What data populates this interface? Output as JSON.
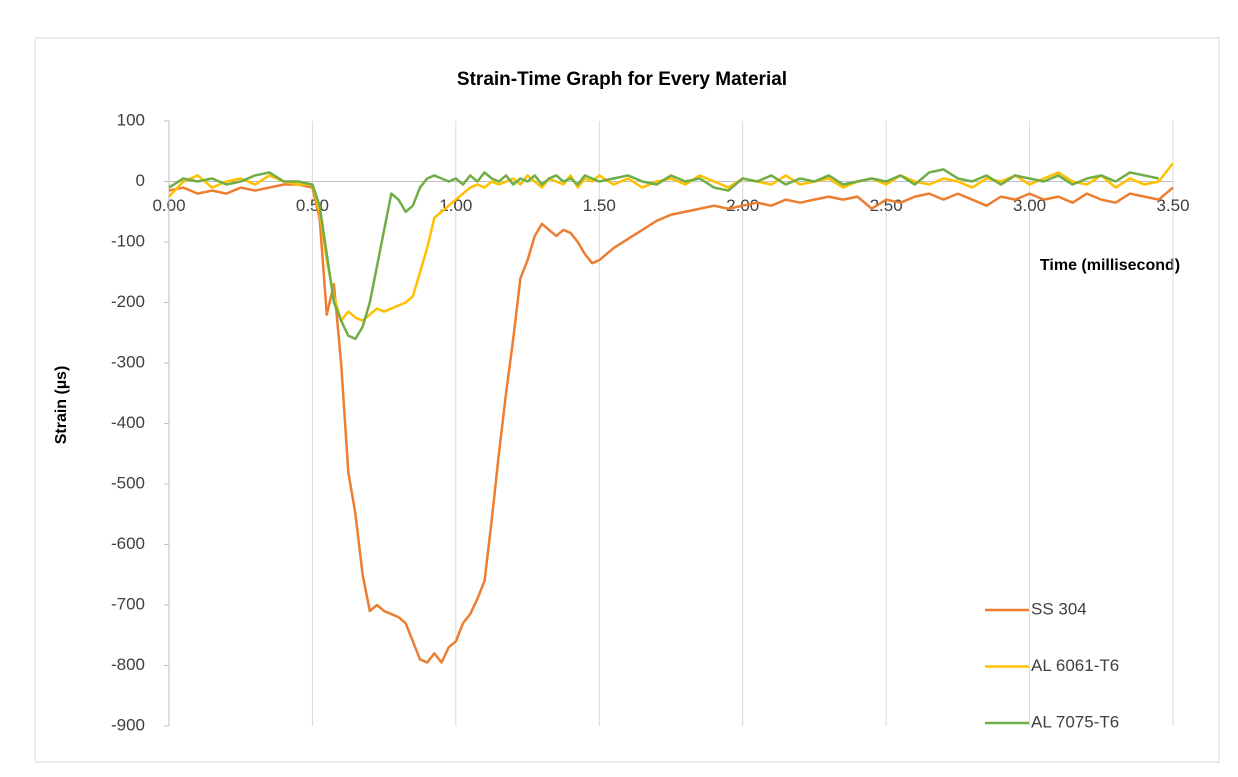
{
  "chart_data": {
    "type": "line",
    "title": "Strain-Time Graph for Every Material",
    "xlabel": "Time (millisecond)",
    "ylabel": "Strain (µs)",
    "x": [
      0,
      0.05,
      0.1,
      0.15,
      0.2,
      0.25,
      0.3,
      0.35,
      0.4,
      0.45,
      0.5,
      0.525,
      0.55,
      0.575,
      0.6,
      0.625,
      0.65,
      0.675,
      0.7,
      0.725,
      0.75,
      0.775,
      0.8,
      0.825,
      0.85,
      0.875,
      0.9,
      0.925,
      0.95,
      0.975,
      1.0,
      1.025,
      1.05,
      1.075,
      1.1,
      1.125,
      1.15,
      1.175,
      1.2,
      1.225,
      1.25,
      1.275,
      1.3,
      1.325,
      1.35,
      1.375,
      1.4,
      1.425,
      1.45,
      1.475,
      1.5,
      1.55,
      1.6,
      1.65,
      1.7,
      1.75,
      1.8,
      1.85,
      1.9,
      1.95,
      2.0,
      2.05,
      2.1,
      2.15,
      2.2,
      2.25,
      2.3,
      2.35,
      2.4,
      2.45,
      2.5,
      2.55,
      2.6,
      2.65,
      2.7,
      2.75,
      2.8,
      2.85,
      2.9,
      2.95,
      3.0,
      3.05,
      3.1,
      3.15,
      3.2,
      3.25,
      3.3,
      3.35,
      3.4,
      3.45,
      3.5
    ],
    "series": [
      {
        "name": "SS 304",
        "color": "#ED7D31",
        "values": [
          -15,
          -10,
          -20,
          -15,
          -20,
          -10,
          -15,
          -10,
          -5,
          -5,
          -10,
          -60,
          -220,
          -170,
          -300,
          -480,
          -550,
          -650,
          -710,
          -700,
          -710,
          -715,
          -720,
          -730,
          -760,
          -790,
          -795,
          -780,
          -795,
          -770,
          -760,
          -730,
          -715,
          -690,
          -660,
          -560,
          -450,
          -350,
          -260,
          -160,
          -130,
          -90,
          -70,
          -80,
          -90,
          -80,
          -85,
          -100,
          -120,
          -135,
          -130,
          -110,
          -95,
          -80,
          -65,
          -55,
          -50,
          -45,
          -40,
          -45,
          -40,
          -35,
          -40,
          -30,
          -35,
          -30,
          -25,
          -30,
          -25,
          -45,
          -30,
          -35,
          -25,
          -20,
          -30,
          -20,
          -30,
          -40,
          -25,
          -30,
          -20,
          -30,
          -25,
          -35,
          -20,
          -30,
          -35,
          -20,
          -25,
          -30,
          -10
        ]
      },
      {
        "name": "AL 6061-T6",
        "color": "#FFC000",
        "values": [
          -25,
          0,
          10,
          -10,
          0,
          5,
          -5,
          10,
          0,
          -5,
          -5,
          -50,
          -130,
          -190,
          -230,
          -215,
          -225,
          -230,
          -220,
          -210,
          -215,
          -210,
          -205,
          -200,
          -190,
          -150,
          -110,
          -60,
          -50,
          -40,
          -30,
          -20,
          -10,
          -5,
          -10,
          0,
          -5,
          0,
          5,
          -5,
          10,
          0,
          -10,
          5,
          0,
          -5,
          10,
          -10,
          5,
          0,
          10,
          -5,
          5,
          -10,
          0,
          5,
          -5,
          10,
          0,
          -10,
          5,
          0,
          -5,
          10,
          -5,
          0,
          5,
          -10,
          0,
          5,
          -5,
          10,
          0,
          -5,
          5,
          0,
          -10,
          5,
          0,
          10,
          -5,
          5,
          15,
          0,
          -5,
          10,
          -10,
          5,
          -5,
          0,
          30
        ]
      },
      {
        "name": "AL 7075-T6",
        "color": "#70AD47",
        "values": [
          -10,
          5,
          0,
          5,
          -5,
          0,
          10,
          15,
          0,
          0,
          -5,
          -40,
          -120,
          -200,
          -230,
          -255,
          -260,
          -240,
          -200,
          -140,
          -80,
          -20,
          -30,
          -50,
          -40,
          -10,
          5,
          10,
          5,
          0,
          5,
          -5,
          10,
          0,
          15,
          5,
          0,
          10,
          -5,
          5,
          0,
          10,
          -5,
          5,
          10,
          0,
          5,
          -5,
          10,
          5,
          0,
          5,
          10,
          0,
          -5,
          10,
          0,
          5,
          -10,
          -15,
          5,
          0,
          10,
          -5,
          5,
          0,
          10,
          -5,
          0,
          5,
          0,
          10,
          -5,
          15,
          20,
          5,
          0,
          10,
          -5,
          10,
          5,
          0,
          10,
          -5,
          5,
          10,
          0,
          15,
          10,
          5,
          null
        ]
      }
    ],
    "xlim": [
      0,
      3.5
    ],
    "ylim": [
      -900,
      100
    ],
    "xticks": [
      {
        "value": 0,
        "label": "0.00"
      },
      {
        "value": 0.5,
        "label": "0.50"
      },
      {
        "value": 1,
        "label": "1.00"
      },
      {
        "value": 1.5,
        "label": "1.50"
      },
      {
        "value": 2,
        "label": "2.00"
      },
      {
        "value": 2.5,
        "label": "2.50"
      },
      {
        "value": 3,
        "label": "3.00"
      },
      {
        "value": 3.5,
        "label": "3.50"
      }
    ],
    "yticks": [
      -900,
      -800,
      -700,
      -600,
      -500,
      -400,
      -300,
      -200,
      -100,
      0,
      100
    ],
    "grid": "x",
    "legend": "lower right"
  }
}
